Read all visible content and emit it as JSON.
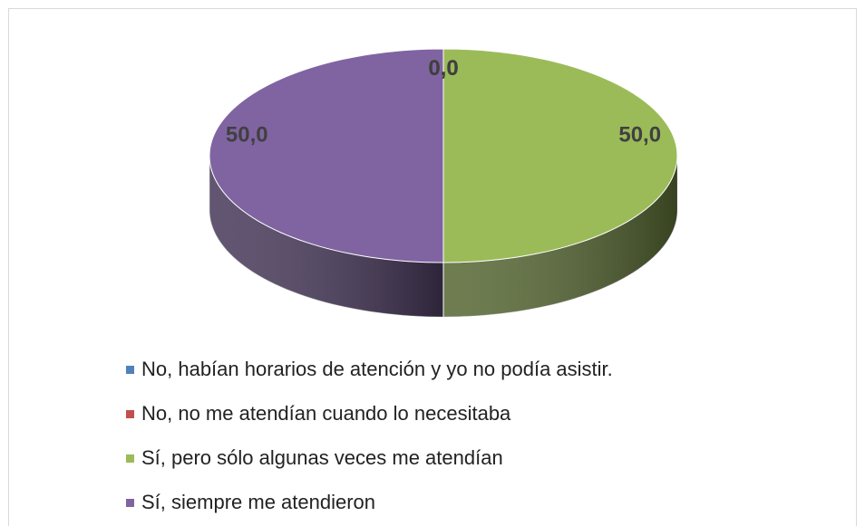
{
  "chart_data": {
    "type": "pie3d",
    "categories": [
      "No, habían horarios de atención y yo no podía asistir.",
      "No, no me atendían cuando lo necesitaba",
      "Sí, pero sólo algunas veces me atendían",
      "Sí, siempre me atendieron"
    ],
    "values": [
      0,
      0,
      50,
      50
    ],
    "value_labels": [
      "0,0",
      "0,0",
      "50,0",
      "50,0"
    ],
    "colors": [
      "#4f81bd",
      "#c0504d",
      "#9bbb59",
      "#8064a2"
    ],
    "legend": "bottom"
  }
}
